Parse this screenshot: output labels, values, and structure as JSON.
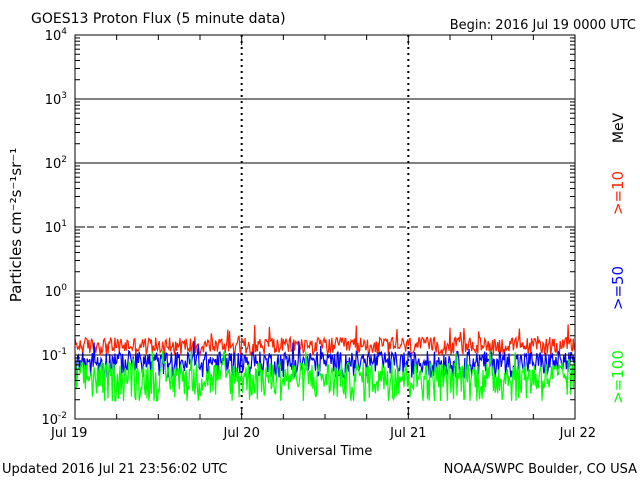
{
  "chart_data": {
    "type": "line",
    "title": "GOES13 Proton Flux (5 minute data)",
    "begin": "Begin: 2016 Jul 19 0000 UTC",
    "ylabel": "Particles cm⁻²s⁻¹sr⁻¹",
    "xlabel": "Universal Time",
    "updated": "Updated 2016 Jul 21 23:56:02 UTC",
    "source": "NOAA/SWPC Boulder, CO USA",
    "unit": "MeV",
    "y_scale": "log",
    "ylim": [
      0.01,
      10000
    ],
    "y_tick_labels": [
      {
        "base": "10",
        "exp": "-2",
        "value": 0.01
      },
      {
        "base": "10",
        "exp": "-1",
        "value": 0.1
      },
      {
        "base": "10",
        "exp": "0",
        "value": 1
      },
      {
        "base": "10",
        "exp": "1",
        "value": 10
      },
      {
        "base": "10",
        "exp": "2",
        "value": 100
      },
      {
        "base": "10",
        "exp": "3",
        "value": 1000
      },
      {
        "base": "10",
        "exp": "4",
        "value": 10000
      }
    ],
    "x_tick_labels": [
      "Jul 19",
      "Jul 20",
      "Jul 21",
      "Jul 22"
    ],
    "xlim_days": [
      0,
      3
    ],
    "reference_lines": [
      {
        "value": 1000,
        "style": "solid"
      },
      {
        "value": 100,
        "style": "solid"
      },
      {
        "value": 10,
        "style": "dashed"
      },
      {
        "value": 1,
        "style": "solid"
      },
      {
        "value": 0.1,
        "style": "solid"
      }
    ],
    "series": [
      {
        "name": ">=10",
        "color": "#ff2200",
        "baseline": 0.125,
        "spread": 0.09,
        "max": 0.4
      },
      {
        "name": ">=50",
        "color": "#0000ff",
        "baseline": 0.065,
        "spread": 0.07,
        "max": 0.2
      },
      {
        "name": ">=100",
        "color": "#00ff00",
        "baseline": 0.035,
        "spread": 0.06,
        "max": 0.12
      }
    ]
  }
}
